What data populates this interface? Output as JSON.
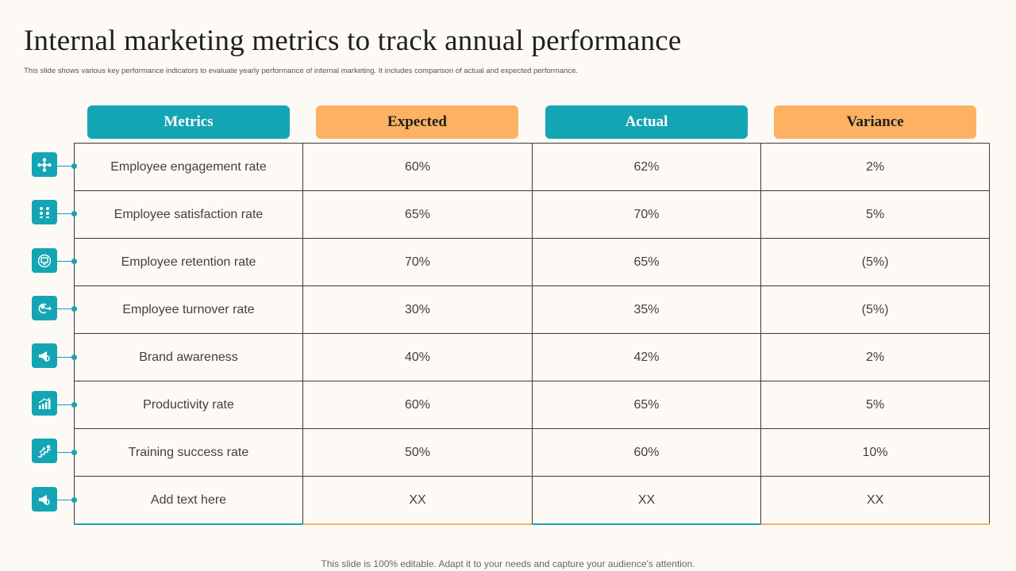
{
  "title": "Internal marketing metrics to track annual performance",
  "subtitle": "This slide shows various key performance indicators to evaluate yearly performance of internal marketing. It includes comparison of actual and expected performance.",
  "headers": {
    "metrics": "Metrics",
    "expected": "Expected",
    "actual": "Actual",
    "variance": "Variance"
  },
  "colors": {
    "teal": "#14a5b4",
    "orange": "#fdb162"
  },
  "rows": [
    {
      "metric": "Employee engagement rate",
      "expected": "60%",
      "actual": "62%",
      "variance": "2%",
      "icon": "people-network-icon"
    },
    {
      "metric": "Employee satisfaction rate",
      "expected": "65%",
      "actual": "70%",
      "variance": "5%",
      "icon": "team-satisfaction-icon"
    },
    {
      "metric": "Employee retention rate",
      "expected": "70%",
      "actual": "65%",
      "variance": "(5%)",
      "icon": "monitor-icon"
    },
    {
      "metric": "Employee turnover rate",
      "expected": "30%",
      "actual": "35%",
      "variance": "(5%)",
      "icon": "person-exit-icon"
    },
    {
      "metric": "Brand awareness",
      "expected": "40%",
      "actual": "42%",
      "variance": "2%",
      "icon": "megaphone-icon"
    },
    {
      "metric": "Productivity rate",
      "expected": "60%",
      "actual": "65%",
      "variance": "5%",
      "icon": "growth-chart-icon"
    },
    {
      "metric": "Training success rate",
      "expected": "50%",
      "actual": "60%",
      "variance": "10%",
      "icon": "stairs-success-icon"
    },
    {
      "metric": "Add text here",
      "expected": "XX",
      "actual": "XX",
      "variance": "XX",
      "icon": "megaphone-icon"
    }
  ],
  "footer": "This slide is 100% editable. Adapt it to your needs and capture your audience's attention."
}
